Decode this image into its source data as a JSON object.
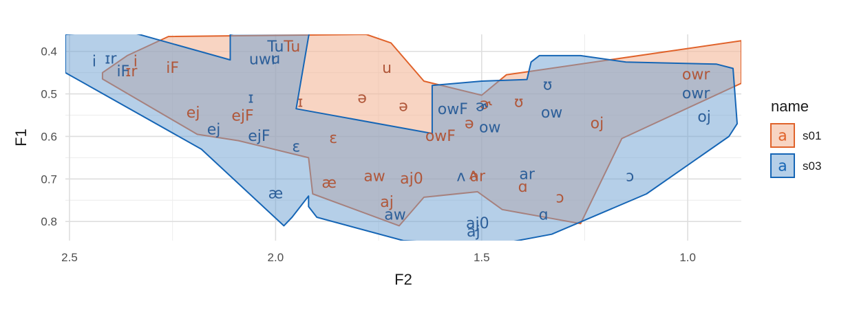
{
  "chart_data": {
    "type": "polygon-scatter",
    "xlabel": "F2",
    "ylabel": "F1",
    "x_reversed": true,
    "y_reversed": true,
    "xlim": [
      2.51,
      0.87
    ],
    "ylim": [
      0.36,
      0.845
    ],
    "x_ticks": [
      2.5,
      2.0,
      1.5,
      1.0
    ],
    "x_tick_labels": [
      "2.5",
      "2.0",
      "1.5",
      "1.0"
    ],
    "y_ticks": [
      0.4,
      0.5,
      0.6,
      0.7,
      0.8
    ],
    "y_tick_labels": [
      "0.4",
      "0.5",
      "0.6",
      "0.7",
      "0.8"
    ],
    "grid": true,
    "legend": {
      "title": "name",
      "position": "right",
      "items": [
        {
          "key_glyph": "a",
          "label": "s01"
        },
        {
          "key_glyph": "a",
          "label": "s03"
        }
      ]
    },
    "series": [
      {
        "name": "s01",
        "color": "#e0622a",
        "fill": "#f4b89a",
        "fill_opacity": 0.6,
        "hull": [
          [
            2.26,
            0.365
          ],
          [
            1.78,
            0.36
          ],
          [
            1.72,
            0.38
          ],
          [
            1.64,
            0.47
          ],
          [
            1.5,
            0.503
          ],
          [
            1.44,
            0.455
          ],
          [
            0.87,
            0.375
          ],
          [
            0.87,
            0.475
          ],
          [
            1.16,
            0.605
          ],
          [
            1.26,
            0.805
          ],
          [
            1.45,
            0.772
          ],
          [
            1.51,
            0.73
          ],
          [
            1.64,
            0.743
          ],
          [
            1.7,
            0.81
          ],
          [
            1.91,
            0.735
          ],
          [
            1.92,
            0.65
          ],
          [
            2.09,
            0.61
          ],
          [
            2.19,
            0.595
          ],
          [
            2.42,
            0.465
          ],
          [
            2.42,
            0.45
          ],
          [
            2.36,
            0.41
          ]
        ],
        "points": [
          {
            "label": "i",
            "F2": 2.34,
            "F1": 0.425
          },
          {
            "label": "iF",
            "F2": 2.25,
            "F1": 0.44
          },
          {
            "label": "ɪr",
            "F2": 2.35,
            "F1": 0.448
          },
          {
            "label": "Tu",
            "F2": 1.96,
            "F1": 0.39
          },
          {
            "label": "u",
            "F2": 1.73,
            "F1": 0.44
          },
          {
            "label": "ɪ",
            "F2": 1.94,
            "F1": 0.52
          },
          {
            "label": "ə",
            "F2": 1.79,
            "F1": 0.51
          },
          {
            "label": "ə",
            "F2": 1.69,
            "F1": 0.53
          },
          {
            "label": "ʊ",
            "F2": 1.41,
            "F1": 0.52
          },
          {
            "label": "ɚ",
            "F2": 1.49,
            "F1": 0.525
          },
          {
            "label": "ej",
            "F2": 2.2,
            "F1": 0.545
          },
          {
            "label": "ejF",
            "F2": 2.08,
            "F1": 0.552
          },
          {
            "label": "ə",
            "F2": 1.53,
            "F1": 0.57
          },
          {
            "label": "oj",
            "F2": 1.22,
            "F1": 0.57
          },
          {
            "label": "owF",
            "F2": 1.6,
            "F1": 0.6
          },
          {
            "label": "ɛ",
            "F2": 1.86,
            "F1": 0.605
          },
          {
            "label": "aw",
            "F2": 1.76,
            "F1": 0.695
          },
          {
            "label": "aj0",
            "F2": 1.67,
            "F1": 0.7
          },
          {
            "label": "ʌ",
            "F2": 1.52,
            "F1": 0.69
          },
          {
            "label": "ar",
            "F2": 1.51,
            "F1": 0.695
          },
          {
            "label": "æ",
            "F2": 1.87,
            "F1": 0.71
          },
          {
            "label": "ɑ",
            "F2": 1.4,
            "F1": 0.72
          },
          {
            "label": "ɔ",
            "F2": 1.31,
            "F1": 0.745
          },
          {
            "label": "aj",
            "F2": 1.73,
            "F1": 0.755
          },
          {
            "label": "owr",
            "F2": 0.98,
            "F1": 0.455
          }
        ]
      },
      {
        "name": "s03",
        "color": "#1565b5",
        "fill": "#6b9fd2",
        "fill_opacity": 0.5,
        "hull": [
          [
            2.51,
            0.36
          ],
          [
            2.44,
            0.355
          ],
          [
            2.35,
            0.355
          ],
          [
            2.11,
            0.42
          ],
          [
            2.11,
            0.36
          ],
          [
            1.91,
            0.32
          ],
          [
            1.92,
            0.365
          ],
          [
            1.95,
            0.535
          ],
          [
            1.62,
            0.593
          ],
          [
            1.62,
            0.48
          ],
          [
            1.5,
            0.47
          ],
          [
            1.39,
            0.466
          ],
          [
            1.38,
            0.425
          ],
          [
            1.36,
            0.41
          ],
          [
            1.26,
            0.41
          ],
          [
            1.15,
            0.425
          ],
          [
            0.93,
            0.43
          ],
          [
            0.89,
            0.44
          ],
          [
            0.88,
            0.57
          ],
          [
            0.9,
            0.6
          ],
          [
            1.1,
            0.735
          ],
          [
            1.33,
            0.83
          ],
          [
            1.43,
            0.848
          ],
          [
            1.49,
            0.855
          ],
          [
            1.69,
            0.845
          ],
          [
            1.9,
            0.79
          ],
          [
            1.92,
            0.765
          ],
          [
            1.92,
            0.74
          ],
          [
            1.96,
            0.79
          ],
          [
            1.98,
            0.81
          ],
          [
            2.18,
            0.63
          ],
          [
            2.51,
            0.45
          ]
        ],
        "points": [
          {
            "label": "i",
            "F2": 2.44,
            "F1": 0.425
          },
          {
            "label": "ɪr",
            "F2": 2.4,
            "F1": 0.418
          },
          {
            "label": "iF",
            "F2": 2.37,
            "F1": 0.448
          },
          {
            "label": "Tu",
            "F2": 2.0,
            "F1": 0.39
          },
          {
            "label": "uwr",
            "F2": 2.03,
            "F1": 0.42
          },
          {
            "label": "u",
            "F2": 2.0,
            "F1": 0.418
          },
          {
            "label": "ɪ",
            "F2": 2.06,
            "F1": 0.51
          },
          {
            "label": "ʊ",
            "F2": 1.34,
            "F1": 0.48
          },
          {
            "label": "owF",
            "F2": 1.57,
            "F1": 0.537
          },
          {
            "label": "ɚ",
            "F2": 1.5,
            "F1": 0.53
          },
          {
            "label": "ow",
            "F2": 1.33,
            "F1": 0.545
          },
          {
            "label": "ow",
            "F2": 1.48,
            "F1": 0.58
          },
          {
            "label": "ej",
            "F2": 2.15,
            "F1": 0.585
          },
          {
            "label": "ejF",
            "F2": 2.04,
            "F1": 0.6
          },
          {
            "label": "ɛ",
            "F2": 1.95,
            "F1": 0.625
          },
          {
            "label": "ʌ",
            "F2": 1.55,
            "F1": 0.695
          },
          {
            "label": "ar",
            "F2": 1.39,
            "F1": 0.69
          },
          {
            "label": "ɔ",
            "F2": 1.14,
            "F1": 0.695
          },
          {
            "label": "æ",
            "F2": 2.0,
            "F1": 0.735
          },
          {
            "label": "ɑ",
            "F2": 1.35,
            "F1": 0.785
          },
          {
            "label": "aw",
            "F2": 1.71,
            "F1": 0.785
          },
          {
            "label": "aj0",
            "F2": 1.51,
            "F1": 0.805
          },
          {
            "label": "aj",
            "F2": 1.52,
            "F1": 0.825
          },
          {
            "label": "owr",
            "F2": 0.98,
            "F1": 0.5
          },
          {
            "label": "oj",
            "F2": 0.96,
            "F1": 0.555
          }
        ]
      }
    ]
  }
}
